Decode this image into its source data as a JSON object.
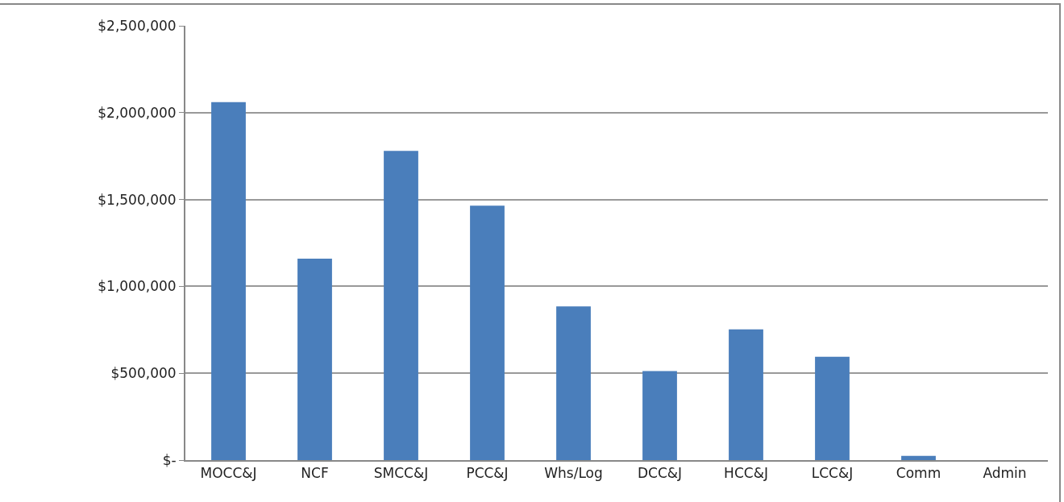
{
  "chart_data": {
    "type": "bar",
    "categories": [
      "MOCC&J",
      "NCF",
      "SMCC&J",
      "PCC&J",
      "Whs/Log",
      "DCC&J",
      "HCC&J",
      "LCC&J",
      "Comm",
      "Admin"
    ],
    "values": [
      2060000,
      1160000,
      1780000,
      1465000,
      885000,
      512000,
      752000,
      595000,
      24000,
      0
    ],
    "color": "#4a7ebb",
    "ylim": [
      0,
      2500000
    ],
    "yticks": [
      {
        "value": 0,
        "label": "$-"
      },
      {
        "value": 500000,
        "label": "$500,000"
      },
      {
        "value": 1000000,
        "label": "$1,000,000"
      },
      {
        "value": 1500000,
        "label": "$1,500,000"
      },
      {
        "value": 2000000,
        "label": "$2,000,000"
      },
      {
        "value": 2500000,
        "label": "$2,500,000"
      }
    ],
    "grid": "y"
  }
}
